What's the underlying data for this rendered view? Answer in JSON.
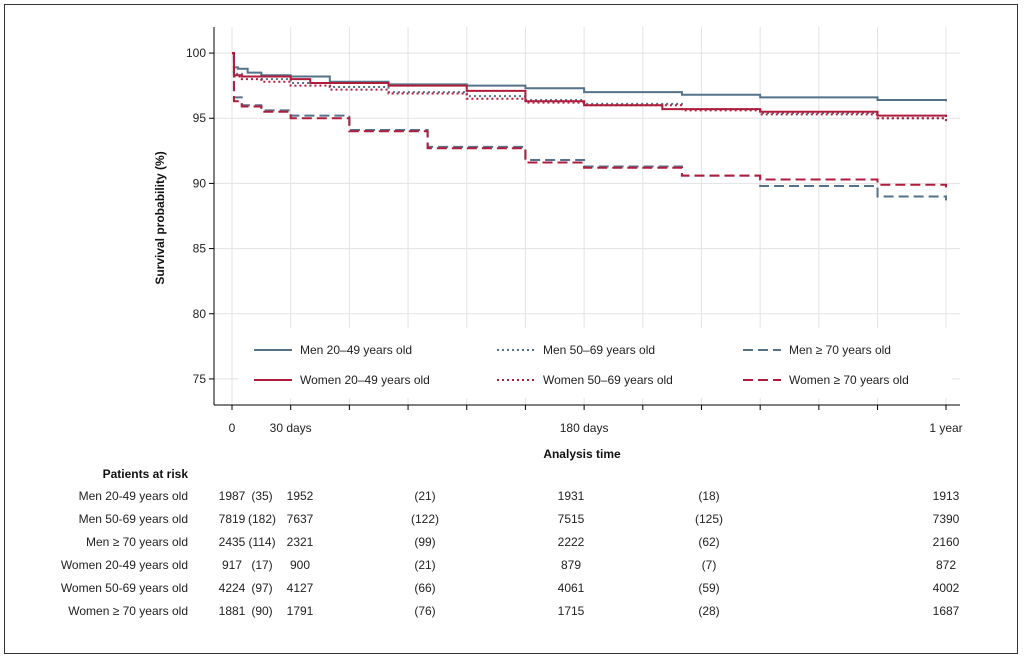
{
  "chart_data": {
    "type": "line",
    "ylabel": "Survival probability (%)",
    "xlabel": "Analysis time",
    "ylim": [
      73,
      102
    ],
    "xlim": [
      0,
      365
    ],
    "yticks": [
      75,
      80,
      85,
      90,
      95,
      100
    ],
    "xtick_labels": [
      {
        "x": 0,
        "label": "0"
      },
      {
        "x": 30,
        "label": "30 days"
      },
      {
        "x": 180,
        "label": "180 days"
      },
      {
        "x": 365,
        "label": "1 year"
      }
    ],
    "minor_xticks": [
      60,
      90,
      120,
      150,
      210,
      240,
      270,
      300,
      330
    ],
    "grid": true,
    "colors": {
      "men": "#54728a",
      "women": "#b01c3c"
    },
    "series": [
      {
        "name": "Men 20–49 years old",
        "color": "#54728a",
        "dash": "solid",
        "x": [
          0,
          1,
          3,
          8,
          15,
          30,
          50,
          80,
          120,
          150,
          180,
          230,
          270,
          330,
          365
        ],
        "y": [
          100,
          98.9,
          98.8,
          98.5,
          98.3,
          98.2,
          97.8,
          97.6,
          97.5,
          97.3,
          97.0,
          96.8,
          96.6,
          96.4,
          96.3
        ]
      },
      {
        "name": "Men 50–69 years old",
        "color": "#54728a",
        "dash": "dot",
        "x": [
          0,
          1,
          5,
          15,
          30,
          50,
          80,
          120,
          150,
          180,
          230,
          270,
          330,
          365
        ],
        "y": [
          100,
          98.4,
          98.2,
          98.0,
          97.7,
          97.4,
          97.0,
          96.7,
          96.4,
          96.1,
          95.7,
          95.4,
          95.0,
          94.7
        ]
      },
      {
        "name": "Men ≥ 70 years old",
        "color": "#54728a",
        "dash": "dash",
        "x": [
          0,
          1,
          5,
          15,
          30,
          60,
          100,
          150,
          180,
          230,
          270,
          330,
          365
        ],
        "y": [
          100,
          96.6,
          96.0,
          95.6,
          95.2,
          94.1,
          92.8,
          91.8,
          91.3,
          90.6,
          89.8,
          89.0,
          88.7
        ]
      },
      {
        "name": "Women 20–49 years old",
        "color": "#b01c3c",
        "dash": "solid",
        "x": [
          0,
          1,
          5,
          15,
          30,
          40,
          80,
          120,
          150,
          180,
          220,
          270,
          330,
          365
        ],
        "y": [
          100,
          98.3,
          98.2,
          98.2,
          98.0,
          97.7,
          97.5,
          97.1,
          96.3,
          96.0,
          95.7,
          95.5,
          95.2,
          95.1
        ]
      },
      {
        "name": "Women 50–69 years old",
        "color": "#b01c3c",
        "dash": "dot",
        "x": [
          0,
          1,
          5,
          15,
          30,
          50,
          80,
          120,
          150,
          180,
          230,
          270,
          330,
          365
        ],
        "y": [
          100,
          98.2,
          98.0,
          97.8,
          97.5,
          97.2,
          96.9,
          96.5,
          96.2,
          96.0,
          95.6,
          95.3,
          95.0,
          94.8
        ]
      },
      {
        "name": "Women ≥ 70 years old",
        "color": "#b01c3c",
        "dash": "dash",
        "x": [
          0,
          1,
          5,
          15,
          30,
          60,
          100,
          150,
          180,
          230,
          270,
          330,
          365
        ],
        "y": [
          100,
          96.3,
          95.9,
          95.5,
          95.0,
          94.0,
          92.7,
          91.6,
          91.2,
          90.6,
          90.3,
          89.9,
          89.7
        ]
      }
    ],
    "legend": {
      "placement": "bottom-inside",
      "columns": 3
    }
  },
  "risk_table": {
    "heading": "Patients at risk",
    "rows": [
      {
        "label": "Men 20-49 years old",
        "cells": [
          "1987",
          "(35)",
          "1952",
          "(21)",
          "1931",
          "(18)",
          "1913"
        ]
      },
      {
        "label": "Men 50-69 years old",
        "cells": [
          "7819",
          "(182)",
          "7637",
          "(122)",
          "7515",
          "(125)",
          "7390"
        ]
      },
      {
        "label": "Men ≥ 70 years old",
        "cells": [
          "2435",
          "(114)",
          "2321",
          "(99)",
          "2222",
          "(62)",
          "2160"
        ]
      },
      {
        "label": "Women 20-49 years old",
        "cells": [
          "917",
          "(17)",
          "900",
          "(21)",
          "879",
          "(7)",
          "872"
        ]
      },
      {
        "label": "Women 50-69 years old",
        "cells": [
          "4224",
          "(97)",
          "4127",
          "(66)",
          "4061",
          "(59)",
          "4002"
        ]
      },
      {
        "label": "Women ≥ 70 years old",
        "cells": [
          "1881",
          "(90)",
          "1791",
          "(76)",
          "1715",
          "(28)",
          "1687"
        ]
      }
    ]
  }
}
